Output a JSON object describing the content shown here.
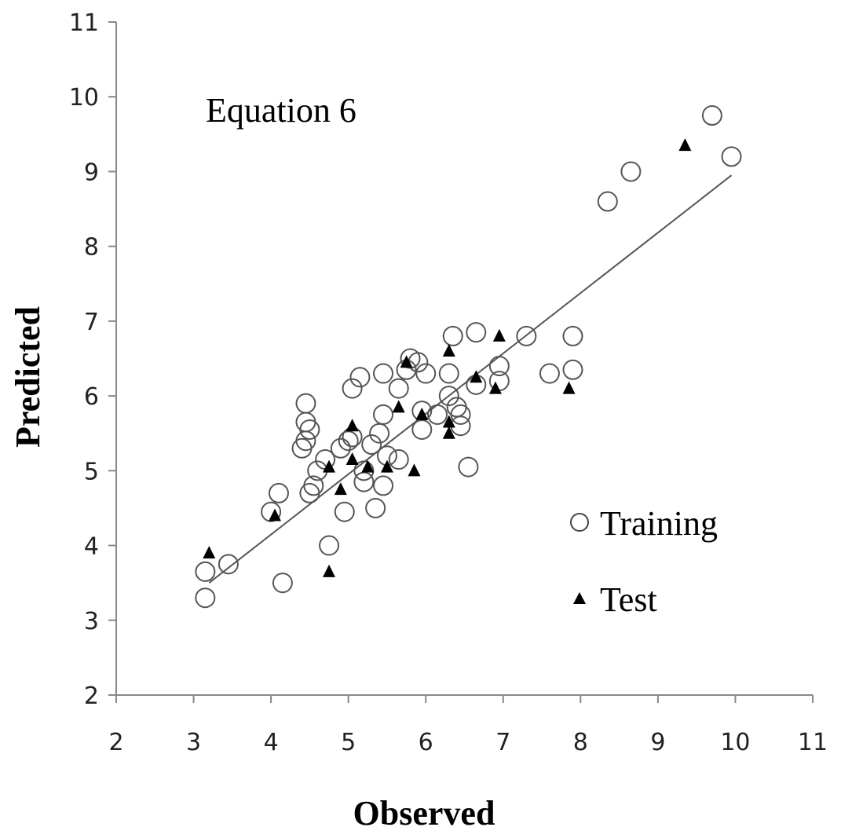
{
  "chart_data": {
    "type": "scatter",
    "title": "",
    "annotation": "Equation 6",
    "xlabel": "Observed",
    "ylabel": "Predicted",
    "xlim": [
      2,
      11
    ],
    "ylim": [
      2,
      11
    ],
    "xticks": [
      "2",
      "3",
      "4",
      "5",
      "6",
      "7",
      "8",
      "9",
      "10",
      "11"
    ],
    "yticks": [
      "2",
      "3",
      "4",
      "5",
      "6",
      "7",
      "8",
      "9",
      "10",
      "11"
    ],
    "grid": false,
    "legend_position": "bottom-right",
    "series": [
      {
        "name": "Training",
        "marker": "open-circle",
        "points": [
          [
            3.15,
            3.65
          ],
          [
            3.15,
            3.3
          ],
          [
            3.45,
            3.75
          ],
          [
            4.15,
            3.5
          ],
          [
            4.1,
            4.7
          ],
          [
            4.0,
            4.45
          ],
          [
            4.5,
            4.7
          ],
          [
            4.75,
            4.0
          ],
          [
            4.95,
            4.45
          ],
          [
            5.35,
            4.5
          ],
          [
            5.45,
            4.8
          ],
          [
            5.2,
            4.85
          ],
          [
            4.55,
            4.8
          ],
          [
            4.6,
            5.0
          ],
          [
            4.7,
            5.15
          ],
          [
            4.9,
            5.3
          ],
          [
            5.0,
            5.4
          ],
          [
            5.05,
            5.45
          ],
          [
            5.3,
            5.35
          ],
          [
            5.4,
            5.5
          ],
          [
            5.45,
            5.75
          ],
          [
            4.45,
            5.9
          ],
          [
            4.45,
            5.65
          ],
          [
            4.5,
            5.55
          ],
          [
            4.45,
            5.4
          ],
          [
            4.4,
            5.3
          ],
          [
            5.05,
            6.1
          ],
          [
            5.15,
            6.25
          ],
          [
            5.45,
            6.3
          ],
          [
            5.65,
            6.1
          ],
          [
            5.75,
            6.35
          ],
          [
            5.8,
            6.5
          ],
          [
            5.9,
            6.45
          ],
          [
            6.0,
            6.3
          ],
          [
            5.95,
            5.55
          ],
          [
            5.95,
            5.8
          ],
          [
            6.15,
            5.75
          ],
          [
            6.3,
            6.0
          ],
          [
            6.3,
            6.3
          ],
          [
            6.4,
            5.85
          ],
          [
            6.45,
            5.6
          ],
          [
            6.45,
            5.75
          ],
          [
            6.35,
            6.8
          ],
          [
            6.65,
            6.85
          ],
          [
            6.65,
            6.15
          ],
          [
            6.95,
            6.2
          ],
          [
            6.95,
            6.4
          ],
          [
            7.3,
            6.8
          ],
          [
            7.6,
            6.3
          ],
          [
            7.9,
            6.8
          ],
          [
            7.9,
            6.35
          ],
          [
            6.55,
            5.05
          ],
          [
            5.65,
            5.15
          ],
          [
            5.5,
            5.2
          ],
          [
            5.2,
            5.0
          ],
          [
            8.35,
            8.6
          ],
          [
            8.65,
            9.0
          ],
          [
            9.7,
            9.75
          ],
          [
            9.95,
            9.2
          ]
        ]
      },
      {
        "name": "Test",
        "marker": "filled-triangle",
        "points": [
          [
            3.2,
            3.9
          ],
          [
            4.05,
            4.4
          ],
          [
            4.75,
            3.65
          ],
          [
            4.75,
            5.05
          ],
          [
            4.9,
            4.75
          ],
          [
            5.05,
            5.15
          ],
          [
            5.05,
            5.6
          ],
          [
            5.25,
            5.05
          ],
          [
            5.5,
            5.05
          ],
          [
            5.65,
            5.85
          ],
          [
            5.75,
            6.45
          ],
          [
            5.85,
            5.0
          ],
          [
            5.95,
            5.75
          ],
          [
            6.3,
            5.5
          ],
          [
            6.3,
            5.65
          ],
          [
            6.3,
            6.6
          ],
          [
            6.65,
            6.25
          ],
          [
            6.9,
            6.1
          ],
          [
            6.95,
            6.8
          ],
          [
            7.85,
            6.1
          ],
          [
            9.35,
            9.35
          ]
        ]
      }
    ],
    "trendline": {
      "x": [
        3.2,
        9.95
      ],
      "y": [
        3.5,
        8.95
      ]
    }
  }
}
